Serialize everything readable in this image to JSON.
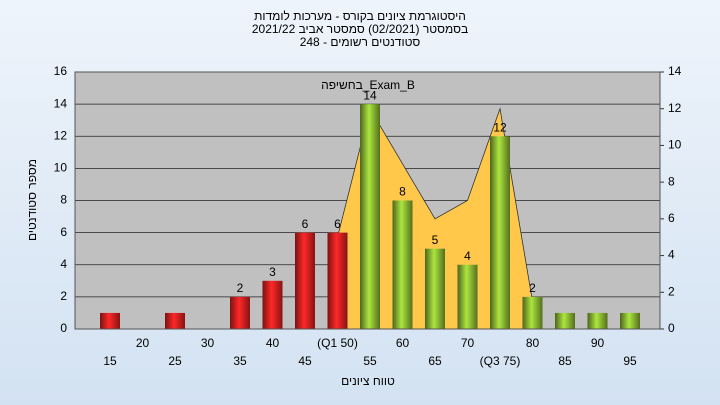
{
  "chart_data": {
    "type": "bar",
    "title": "היסטוגרמת ציונים בקורס - מערכות לומדות",
    "subtitle": "בסמסטר  (02/2021)  סמסטר אביב 2021/22",
    "subtitle2": "סטודנטים רשומים - 248",
    "annotation": "בחשיפה_Exam_B",
    "x_label": "טווח ציונים",
    "y_label": "מספר סטודנטים",
    "categories": [
      "15",
      "20",
      "25",
      "30",
      "35",
      "40",
      "45",
      "(Q1 50)",
      "55",
      "60",
      "65",
      "70",
      "(Q3 75)",
      "80",
      "85",
      "90",
      "95"
    ],
    "series": [
      {
        "type": "area",
        "axis": "y2",
        "color": "#ffc84a",
        "values": [
          null,
          null,
          null,
          null,
          null,
          null,
          null,
          5,
          12,
          9,
          6,
          7,
          12,
          1.5,
          null,
          null,
          null
        ]
      },
      {
        "type": "bar",
        "colors": [
          "#e02020",
          "#e02020",
          "#e02020",
          "#e02020",
          "#e02020",
          "#e02020",
          "#e02020",
          "#e02020",
          "#8ab832",
          "#8ab832",
          "#8ab832",
          "#8ab832",
          "#8ab832",
          "#8ab832",
          "#8ab832",
          "#8ab832",
          "#8ab832"
        ],
        "values": [
          1,
          0,
          1,
          0,
          2,
          3,
          6,
          6,
          14,
          8,
          5,
          4,
          12,
          2,
          1,
          1,
          1
        ],
        "value_labels": [
          null,
          null,
          null,
          null,
          "2",
          "3",
          "6",
          "6",
          "14",
          "8",
          "5",
          "4",
          "12",
          "2",
          null,
          null,
          null
        ]
      }
    ],
    "ylim": [
      0,
      16
    ],
    "yticks": [
      0,
      2,
      4,
      6,
      8,
      10,
      12,
      14,
      16
    ],
    "y2lim": [
      0,
      14
    ],
    "y2ticks": [
      0,
      2,
      4,
      6,
      8,
      10,
      12,
      14
    ],
    "grid": true
  }
}
